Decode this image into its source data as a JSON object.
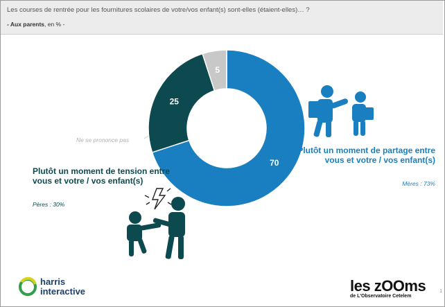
{
  "header": {
    "question": "Les courses de rentrée pour les fournitures scolaires de votre/vos enfant(s) sont-elles (étaient-elles)… ?",
    "subtitle_bold": "- Aux parents",
    "subtitle_rest": ", en % -"
  },
  "chart_data": {
    "type": "pie",
    "donut": true,
    "slices": [
      {
        "label": "Plutôt un moment de partage entre vous et votre / vos enfant(s)",
        "value": 70,
        "value_label": "70",
        "color": "#1a7fc0"
      },
      {
        "label": "Plutôt un moment de tension entre vous et votre / vos enfant(s)",
        "value": 25,
        "value_label": "25",
        "color": "#0d4a4f"
      },
      {
        "label": "Ne se prononce pas",
        "value": 5,
        "value_label": "5",
        "color": "#c8c8c8"
      }
    ]
  },
  "annotations": {
    "partage_title": "Plutôt un moment de partage entre vous et votre / vos enfant(s)",
    "partage_sub": "Mères : 73%",
    "tension_title": "Plutôt un moment de tension entre vous et votre / vos enfant(s)",
    "tension_sub": "Pères : 30%",
    "nsp": "Ne se prononce pas"
  },
  "colors": {
    "partage": "#1a7fc0",
    "tension": "#0d4a4f",
    "nsp": "#c8c8c8",
    "harris": "#1f3f6a"
  },
  "logos": {
    "harris_line1": "harris",
    "harris_line2": "interactive",
    "leszooms": "les zOOms",
    "leszooms_sub": "de L'Observatoire Cetelem"
  },
  "page_number": "1"
}
